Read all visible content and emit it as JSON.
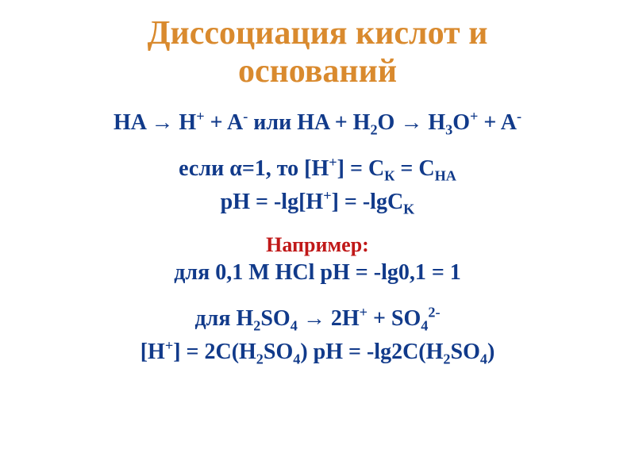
{
  "colors": {
    "title": "#d98a2e",
    "body": "#113a8a",
    "example_label": "#c01818",
    "background": "#ffffff"
  },
  "fontsize": {
    "title": 42,
    "body": 28,
    "example_label": 26
  },
  "title": {
    "line1": "Диссоциация кислот и",
    "line2": "оснований"
  },
  "eq1": {
    "p1": "HA ",
    "arrow1": "→",
    "p2": " H",
    "sup1": "+",
    "p3": " + A",
    "sup2": "-",
    "p4": " или HA + H",
    "sub1": "2",
    "p5": "O ",
    "arrow2": "→",
    "p6": " H",
    "sub2": "3",
    "p7": "O",
    "sup3": "+",
    "p8": " + A",
    "sup4": "-"
  },
  "eq2": {
    "p1": "если ",
    "alpha": "α",
    "p2": "=1, то [H",
    "sup1": "+",
    "p3": "] = С",
    "sub1": "К",
    "p4": " = С",
    "sub2": "НА"
  },
  "eq3": {
    "p1": "pH = -lg[H",
    "sup1": "+",
    "p2": "] = -lgC",
    "sub1": "K"
  },
  "example_label": "Например:",
  "eq4": "для 0,1 М HCl  pH = -lg0,1 = 1",
  "eq5": {
    "p1": "для  H",
    "sub1": "2",
    "p2": "SO",
    "sub2": "4",
    "p3": " ",
    "arrow": "→",
    "p4": " 2H",
    "sup1": "+",
    "p5": " + SO",
    "sub3": "4",
    "sup2": "2-"
  },
  "eq6": {
    "p1": "[H",
    "sup1": "+",
    "p2": "] = 2C(H",
    "sub1": "2",
    "p3": "SO",
    "sub2": "4",
    "p4": ")    pH = -lg2C(H",
    "sub3": "2",
    "p5": "SO",
    "sub4": "4",
    "p6": ")"
  }
}
